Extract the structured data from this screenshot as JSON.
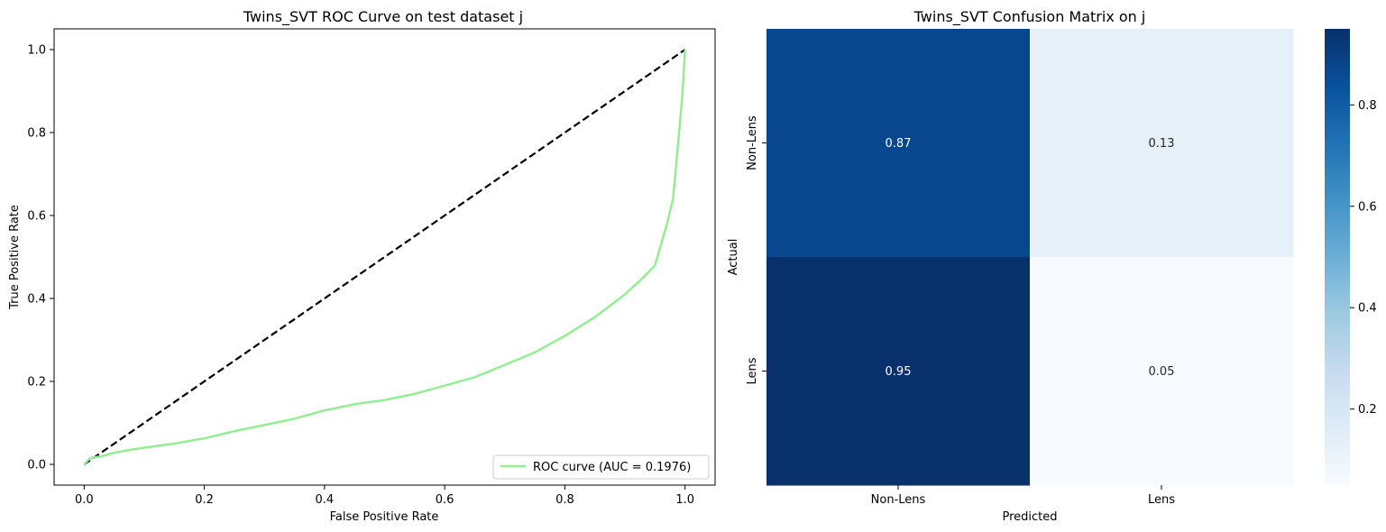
{
  "chart_data": [
    {
      "type": "line",
      "title": "Twins_SVT ROC Curve on test dataset j",
      "xlabel": "False Positive Rate",
      "ylabel": "True Positive Rate",
      "xlim": [
        -0.05,
        1.05
      ],
      "ylim": [
        -0.05,
        1.05
      ],
      "xticks": [
        0.0,
        0.2,
        0.4,
        0.6,
        0.8,
        1.0
      ],
      "yticks": [
        0.0,
        0.2,
        0.4,
        0.6,
        0.8,
        1.0
      ],
      "xtick_labels": [
        "0.0",
        "0.2",
        "0.4",
        "0.6",
        "0.8",
        "1.0"
      ],
      "ytick_labels": [
        "0.0",
        "0.2",
        "0.4",
        "0.6",
        "0.8",
        "1.0"
      ],
      "grid": false,
      "legend_position": "lower-right",
      "series": [
        {
          "name": "ROC curve (AUC = 0.1976)",
          "color": "#90ee90",
          "style": "solid",
          "x": [
            0.0,
            0.01,
            0.03,
            0.05,
            0.08,
            0.1,
            0.15,
            0.2,
            0.25,
            0.3,
            0.35,
            0.4,
            0.45,
            0.5,
            0.55,
            0.6,
            0.65,
            0.7,
            0.75,
            0.8,
            0.85,
            0.9,
            0.93,
            0.95,
            0.96,
            0.97,
            0.98,
            0.985,
            0.99,
            0.995,
            1.0
          ],
          "y": [
            0.0,
            0.015,
            0.02,
            0.028,
            0.036,
            0.04,
            0.05,
            0.063,
            0.08,
            0.095,
            0.11,
            0.13,
            0.145,
            0.155,
            0.17,
            0.19,
            0.21,
            0.24,
            0.27,
            0.31,
            0.355,
            0.41,
            0.45,
            0.48,
            0.53,
            0.58,
            0.64,
            0.72,
            0.8,
            0.88,
            1.0
          ]
        },
        {
          "name": "",
          "color": "#000000",
          "style": "dashed",
          "x": [
            0.0,
            1.0
          ],
          "y": [
            0.0,
            1.0
          ]
        }
      ]
    },
    {
      "type": "heatmap",
      "title": "Twins_SVT Confusion Matrix on j",
      "xlabel": "Predicted",
      "ylabel": "Actual",
      "x_categories": [
        "Non-Lens",
        "Lens"
      ],
      "y_categories": [
        "Non-Lens",
        "Lens"
      ],
      "values": [
        [
          0.87,
          0.13
        ],
        [
          0.95,
          0.05
        ]
      ],
      "value_labels": [
        [
          "0.87",
          "0.13"
        ],
        [
          "0.95",
          "0.05"
        ]
      ],
      "colormap": "Blues",
      "colorbar_range": [
        0.05,
        0.95
      ],
      "colorbar_ticks": [
        0.2,
        0.4,
        0.6,
        0.8
      ],
      "colorbar_tick_labels": [
        "0.2",
        "0.4",
        "0.6",
        "0.8"
      ]
    }
  ]
}
